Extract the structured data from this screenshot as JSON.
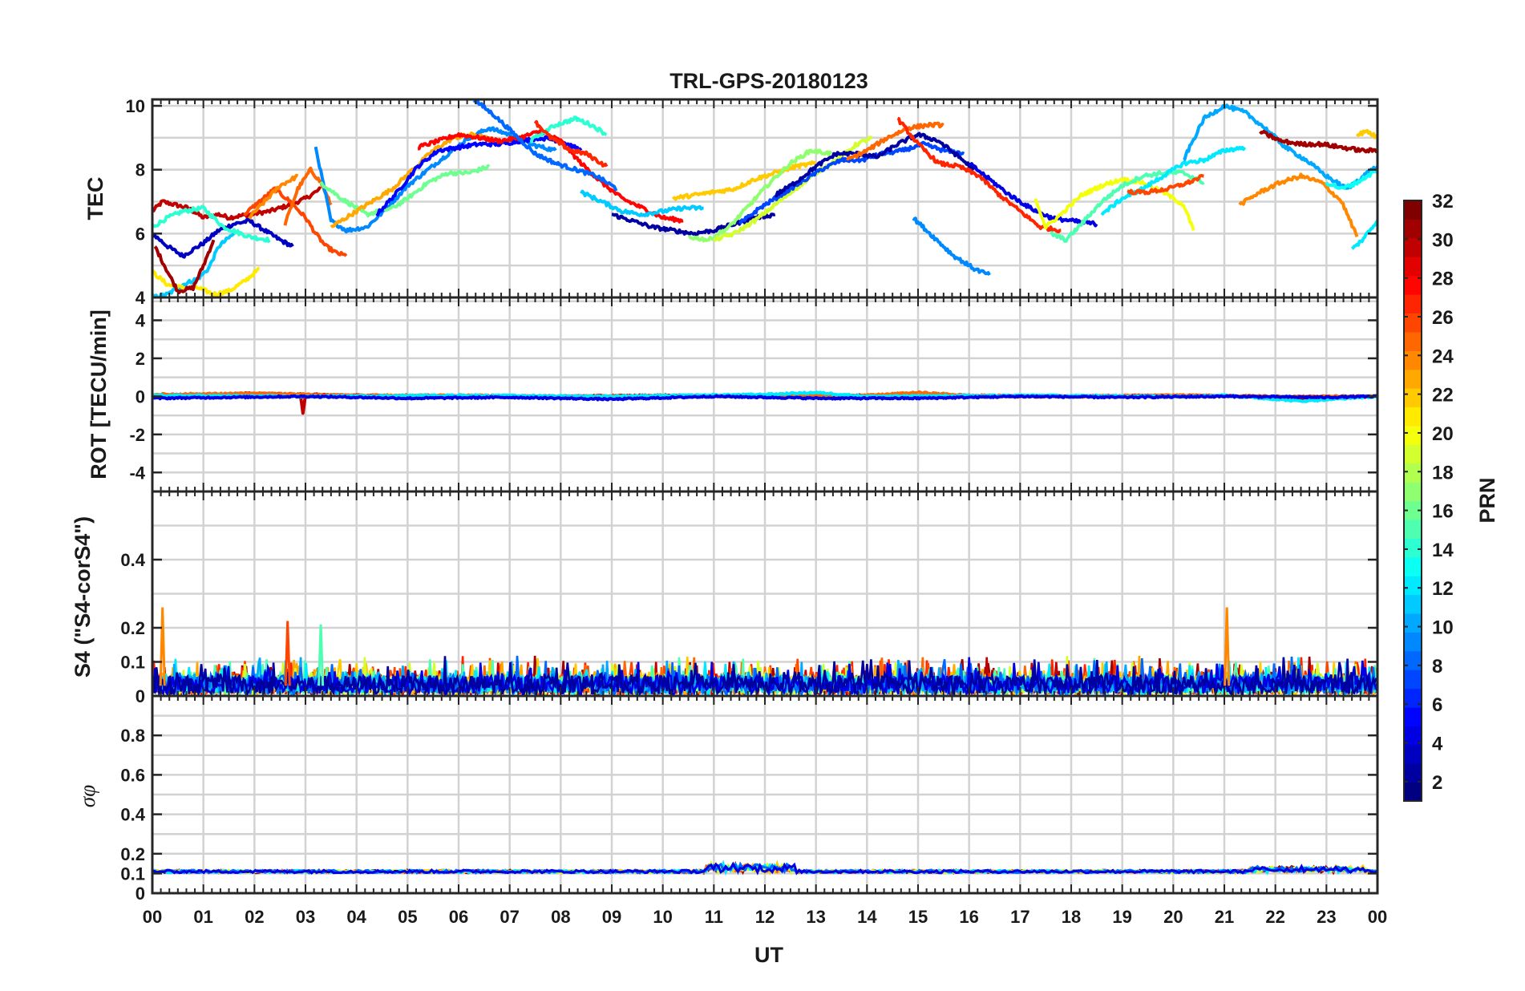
{
  "title": "TRL-GPS-20180123",
  "xlabel": "UT",
  "x_ticks": [
    "00",
    "01",
    "02",
    "03",
    "04",
    "05",
    "06",
    "07",
    "08",
    "09",
    "10",
    "11",
    "12",
    "13",
    "14",
    "15",
    "16",
    "17",
    "18",
    "19",
    "20",
    "21",
    "22",
    "23",
    "00"
  ],
  "colorbar": {
    "label": "PRN",
    "range": [
      1,
      32
    ],
    "ticks": [
      "2",
      "4",
      "6",
      "8",
      "10",
      "12",
      "14",
      "16",
      "18",
      "20",
      "22",
      "24",
      "26",
      "28",
      "30",
      "32"
    ],
    "colormap": "jet"
  },
  "chart_data": [
    {
      "type": "line",
      "panel": "tec",
      "ylabel": "TEC",
      "ylim": [
        4,
        10.2
      ],
      "yticks": [
        "4",
        "6",
        "8",
        "10"
      ],
      "grid": true,
      "x_unit": "hours UT",
      "series": [
        {
          "prn": 30,
          "x": [
            0.0,
            0.2,
            0.45,
            0.7,
            1.0,
            1.3,
            1.5,
            1.9,
            2.3,
            2.7,
            3.0,
            3.3
          ],
          "y": [
            6.7,
            7.0,
            6.9,
            6.8,
            6.5,
            6.6,
            6.5,
            6.6,
            6.7,
            6.9,
            7.1,
            7.4
          ]
        },
        {
          "prn": 3,
          "x": [
            0.0,
            0.3,
            0.6,
            1.0,
            1.3,
            1.6,
            1.9,
            2.2,
            2.5,
            2.75
          ],
          "y": [
            6.0,
            5.6,
            5.3,
            5.7,
            6.1,
            6.3,
            6.4,
            6.1,
            5.8,
            5.6
          ]
        },
        {
          "prn": 11,
          "x": [
            0.0,
            0.3,
            0.6,
            0.9,
            1.1,
            1.3,
            1.6
          ],
          "y": [
            4.0,
            4.1,
            4.4,
            4.6,
            4.9,
            5.6,
            6.0
          ]
        },
        {
          "prn": 14,
          "x": [
            0.0,
            0.3,
            0.6,
            1.0,
            1.4,
            1.9,
            2.3
          ],
          "y": [
            6.2,
            6.5,
            6.7,
            6.8,
            6.2,
            5.9,
            5.8
          ]
        },
        {
          "prn": 21,
          "x": [
            0.0,
            0.3,
            0.6,
            0.9,
            1.2,
            1.5,
            1.8,
            2.1
          ],
          "y": [
            4.8,
            4.4,
            4.3,
            4.3,
            4.1,
            4.2,
            4.5,
            4.9
          ]
        },
        {
          "prn": 31,
          "x": [
            0.05,
            0.3,
            0.5,
            0.8,
            1.0,
            1.2
          ],
          "y": [
            5.6,
            4.8,
            4.2,
            4.3,
            5.0,
            5.8
          ]
        },
        {
          "prn": 26,
          "x": [
            1.8,
            2.1,
            2.4,
            2.7,
            3.0,
            3.2,
            3.4,
            3.6,
            3.8
          ],
          "y": [
            6.6,
            7.0,
            7.4,
            7.0,
            6.5,
            6.0,
            5.6,
            5.4,
            5.3
          ]
        },
        {
          "prn": 24,
          "x": [
            1.9,
            2.2,
            2.5,
            2.85
          ],
          "y": [
            6.5,
            7.0,
            7.5,
            7.8
          ]
        },
        {
          "prn": 25,
          "x": [
            2.6,
            2.85,
            3.1,
            3.3,
            3.5
          ],
          "y": [
            6.3,
            7.4,
            8.0,
            7.6,
            6.9
          ]
        },
        {
          "prn": 9,
          "x": [
            3.2,
            3.5,
            3.8,
            4.2,
            4.6,
            5.0,
            5.4,
            5.8,
            6.2,
            6.6,
            7.0,
            7.4,
            7.9
          ],
          "y": [
            8.7,
            6.4,
            6.1,
            6.2,
            6.8,
            7.5,
            8.0,
            8.5,
            9.0,
            9.3,
            9.1,
            8.8,
            8.6
          ]
        },
        {
          "prn": 16,
          "x": [
            3.3,
            3.7,
            4.2,
            4.7,
            5.0,
            5.4,
            5.8,
            6.2,
            6.6
          ],
          "y": [
            7.6,
            7.1,
            6.6,
            6.8,
            7.1,
            7.6,
            7.9,
            7.9,
            8.1
          ]
        },
        {
          "prn": 23,
          "x": [
            3.5,
            3.9,
            4.3,
            4.7,
            5.1,
            5.5,
            5.9,
            6.3,
            6.7
          ],
          "y": [
            6.2,
            6.6,
            7.0,
            7.4,
            8.0,
            8.6,
            9.0,
            9.1,
            8.9
          ]
        },
        {
          "prn": 5,
          "x": [
            4.4,
            4.8,
            5.2,
            5.6,
            6.0,
            6.4,
            6.8,
            7.2,
            7.6,
            8.0,
            8.4
          ],
          "y": [
            6.6,
            7.3,
            8.1,
            8.6,
            8.7,
            8.8,
            8.8,
            8.9,
            9.0,
            8.9,
            8.6
          ]
        },
        {
          "prn": 28,
          "x": [
            5.2,
            5.6,
            6.0,
            6.4,
            6.8,
            7.2,
            7.6,
            8.0,
            8.4,
            8.8,
            9.2,
            9.6,
            10.0,
            10.4
          ],
          "y": [
            8.7,
            8.9,
            9.1,
            9.0,
            8.9,
            9.0,
            9.2,
            8.9,
            8.2,
            7.6,
            7.1,
            6.8,
            6.5,
            6.4
          ]
        },
        {
          "prn": 8,
          "x": [
            6.3,
            6.7,
            7.1,
            7.5,
            7.9,
            8.3,
            8.7,
            9.1
          ],
          "y": [
            10.2,
            9.7,
            9.1,
            8.5,
            8.2,
            8.0,
            7.8,
            7.4
          ]
        },
        {
          "prn": 14,
          "x": [
            7.4,
            7.9,
            8.3,
            8.6,
            8.9
          ],
          "y": [
            8.9,
            9.4,
            9.6,
            9.4,
            9.1
          ]
        },
        {
          "prn": 27,
          "x": [
            7.5,
            7.8,
            8.2,
            8.5,
            8.9
          ],
          "y": [
            9.5,
            9.0,
            8.6,
            8.5,
            8.1
          ]
        },
        {
          "prn": 11,
          "x": [
            8.4,
            8.8,
            9.2,
            9.6,
            10.0,
            10.4,
            10.8
          ],
          "y": [
            7.3,
            7.0,
            6.7,
            6.6,
            6.7,
            6.8,
            6.8
          ]
        },
        {
          "prn": 2,
          "x": [
            9.0,
            9.4,
            9.8,
            10.2,
            10.6,
            11.0,
            11.4,
            11.8,
            12.2
          ],
          "y": [
            6.6,
            6.4,
            6.2,
            6.1,
            6.0,
            6.1,
            6.3,
            6.5,
            6.6
          ]
        },
        {
          "prn": 22,
          "x": [
            10.2,
            10.6,
            11.0,
            11.4,
            11.8,
            12.2,
            12.6,
            13.0
          ],
          "y": [
            7.1,
            7.2,
            7.3,
            7.4,
            7.7,
            7.9,
            8.1,
            8.2
          ]
        },
        {
          "prn": 17,
          "x": [
            10.5,
            10.9,
            11.3,
            11.7,
            12.1,
            12.5,
            12.9,
            13.3
          ],
          "y": [
            5.9,
            5.8,
            6.2,
            6.9,
            7.6,
            8.2,
            8.6,
            8.5
          ]
        },
        {
          "prn": 19,
          "x": [
            11.0,
            11.4,
            11.8,
            12.2,
            12.6,
            13.0,
            13.4,
            13.8,
            14.1
          ],
          "y": [
            5.8,
            6.0,
            6.4,
            6.9,
            7.4,
            7.9,
            8.3,
            8.8,
            9.0
          ]
        },
        {
          "prn": 7,
          "x": [
            11.5,
            11.9,
            12.3,
            12.7,
            13.1,
            13.5,
            13.9,
            14.3,
            14.7,
            15.1,
            15.5,
            15.9
          ],
          "y": [
            6.3,
            6.8,
            7.2,
            7.6,
            8.0,
            8.3,
            8.3,
            8.5,
            8.6,
            8.8,
            8.6,
            8.5
          ]
        },
        {
          "prn": 2,
          "x": [
            12.2,
            12.6,
            13.0,
            13.4,
            13.8,
            14.2,
            14.6,
            15.0,
            15.4,
            15.8,
            16.1
          ],
          "y": [
            7.2,
            7.6,
            8.1,
            8.5,
            8.5,
            8.4,
            8.8,
            9.1,
            8.9,
            8.4,
            8.0
          ]
        },
        {
          "prn": 25,
          "x": [
            13.6,
            14.0,
            14.4,
            14.8,
            15.2,
            15.5
          ],
          "y": [
            8.3,
            8.6,
            9.0,
            9.3,
            9.4,
            9.4
          ]
        },
        {
          "prn": 27,
          "x": [
            14.6,
            15.0,
            15.4,
            15.8,
            16.2,
            16.6,
            17.0,
            17.4,
            17.8
          ],
          "y": [
            9.6,
            8.8,
            8.2,
            8.1,
            7.8,
            7.2,
            6.7,
            6.2,
            6.1
          ]
        },
        {
          "prn": 9,
          "x": [
            14.9,
            15.3,
            15.7,
            16.1,
            16.4
          ],
          "y": [
            6.5,
            5.9,
            5.3,
            4.9,
            4.7
          ]
        },
        {
          "prn": 4,
          "x": [
            16.0,
            16.4,
            16.8,
            17.2,
            17.6,
            18.0,
            18.5
          ],
          "y": [
            8.2,
            7.7,
            7.2,
            6.8,
            6.5,
            6.4,
            6.3
          ]
        },
        {
          "prn": 20,
          "x": [
            17.3,
            17.5,
            17.8,
            18.2,
            18.6,
            19.0,
            19.4,
            19.8,
            20.2,
            20.4
          ],
          "y": [
            7.1,
            6.2,
            6.6,
            7.2,
            7.5,
            7.7,
            7.6,
            7.3,
            6.9,
            6.1
          ]
        },
        {
          "prn": 15,
          "x": [
            17.6,
            17.9,
            18.2,
            18.6,
            19.0,
            19.4,
            19.8,
            20.2,
            20.6
          ],
          "y": [
            6.0,
            5.8,
            6.3,
            7.0,
            7.5,
            7.8,
            7.9,
            7.9,
            7.6
          ]
        },
        {
          "prn": 12,
          "x": [
            18.6,
            19.0,
            19.4,
            19.8,
            20.2,
            20.6,
            21.0,
            21.4
          ],
          "y": [
            6.6,
            7.1,
            7.4,
            7.8,
            8.2,
            8.3,
            8.6,
            8.7
          ]
        },
        {
          "prn": 26,
          "x": [
            19.1,
            19.5,
            19.9,
            20.3,
            20.6
          ],
          "y": [
            7.3,
            7.3,
            7.4,
            7.6,
            7.8
          ]
        },
        {
          "prn": 10,
          "x": [
            20.2,
            20.6,
            21.0,
            21.4,
            21.8,
            22.2,
            22.6,
            23.0,
            23.4,
            23.8,
            24.0
          ],
          "y": [
            8.3,
            9.6,
            10.0,
            9.8,
            9.3,
            8.7,
            8.3,
            7.8,
            7.4,
            7.9,
            8.1
          ]
        },
        {
          "prn": 24,
          "x": [
            21.3,
            21.7,
            22.1,
            22.5,
            22.9,
            23.3,
            23.6
          ],
          "y": [
            6.9,
            7.3,
            7.6,
            7.8,
            7.6,
            7.0,
            5.9
          ]
        },
        {
          "prn": 31,
          "x": [
            21.7,
            22.1,
            22.5,
            22.9,
            23.3,
            23.7,
            24.0
          ],
          "y": [
            9.2,
            8.9,
            8.8,
            8.8,
            8.7,
            8.6,
            8.6
          ]
        },
        {
          "prn": 13,
          "x": [
            23.0,
            23.3,
            23.6,
            24.0
          ],
          "y": [
            7.6,
            7.4,
            7.6,
            8.0
          ]
        },
        {
          "prn": 12,
          "x": [
            23.5,
            23.7,
            24.0
          ],
          "y": [
            5.5,
            5.8,
            6.4
          ]
        },
        {
          "prn": 22,
          "x": [
            23.6,
            23.8,
            24.0
          ],
          "y": [
            9.1,
            9.2,
            9.0
          ]
        }
      ]
    },
    {
      "type": "line",
      "panel": "rot",
      "ylabel": "ROT [TECU/min]",
      "ylim": [
        -5,
        5.2
      ],
      "yticks": [
        "-4",
        "-2",
        "0",
        "2",
        "4"
      ],
      "grid": true,
      "series": [
        {
          "prn": 30,
          "x": [
            0,
            1,
            2,
            2.9,
            2.95,
            3.0,
            4,
            6,
            8,
            10,
            12,
            14,
            16,
            18,
            20,
            21.7,
            22,
            23,
            24
          ],
          "y": [
            0.05,
            0.1,
            0.15,
            0.1,
            -0.9,
            0.1,
            0.05,
            0.0,
            0.0,
            0.05,
            0.0,
            0.05,
            0.0,
            0.0,
            0.05,
            0.0,
            -0.15,
            -0.05,
            0.0
          ]
        },
        {
          "prn": 25,
          "x": [
            0,
            2,
            4,
            6,
            8,
            10,
            12,
            14,
            15,
            16,
            18,
            20,
            22,
            24
          ],
          "y": [
            0.1,
            0.15,
            0.05,
            0.05,
            0.0,
            0.0,
            0.05,
            0.05,
            0.2,
            0.05,
            0.0,
            0.05,
            0.0,
            0.0
          ]
        },
        {
          "prn": 12,
          "x": [
            0,
            3,
            6,
            9,
            12,
            13,
            14,
            17,
            20,
            21,
            22.5,
            24
          ],
          "y": [
            0.05,
            0.0,
            0.05,
            0.0,
            0.1,
            0.2,
            0.0,
            0.05,
            0.0,
            0.05,
            -0.25,
            0.0
          ]
        },
        {
          "prn": 4,
          "x": [
            0,
            3,
            5,
            7,
            9,
            11,
            13,
            15,
            17,
            19,
            21,
            23,
            24
          ],
          "y": [
            -0.1,
            0.0,
            -0.1,
            -0.05,
            -0.15,
            0.0,
            -0.1,
            -0.1,
            0.0,
            -0.05,
            0.0,
            -0.05,
            0.0
          ]
        }
      ]
    },
    {
      "type": "line",
      "panel": "s4",
      "ylabel": "S4 (\"S4-corS4\")",
      "ylim": [
        0,
        0.6
      ],
      "yticks": [
        "0",
        "0.1",
        "0.2",
        "0.4"
      ],
      "grid": true,
      "description_values": {
        "typical_range": [
          0.0,
          0.12
        ],
        "spikes": [
          {
            "x": 0.2,
            "y": 0.26,
            "prn": 24
          },
          {
            "x": 2.65,
            "y": 0.22,
            "prn": 26
          },
          {
            "x": 3.3,
            "y": 0.21,
            "prn": 15
          },
          {
            "x": 21.05,
            "y": 0.26,
            "prn": 24
          }
        ]
      },
      "series": []
    },
    {
      "type": "line",
      "panel": "sigma_phi",
      "ylabel": "σφ",
      "ylim": [
        0,
        1.0
      ],
      "yticks": [
        "0",
        "0.1",
        "0.2",
        "0.4",
        "0.6",
        "0.8"
      ],
      "grid": true,
      "description_values": {
        "typical_level": 0.11,
        "max_level": 0.16
      },
      "series": []
    }
  ]
}
